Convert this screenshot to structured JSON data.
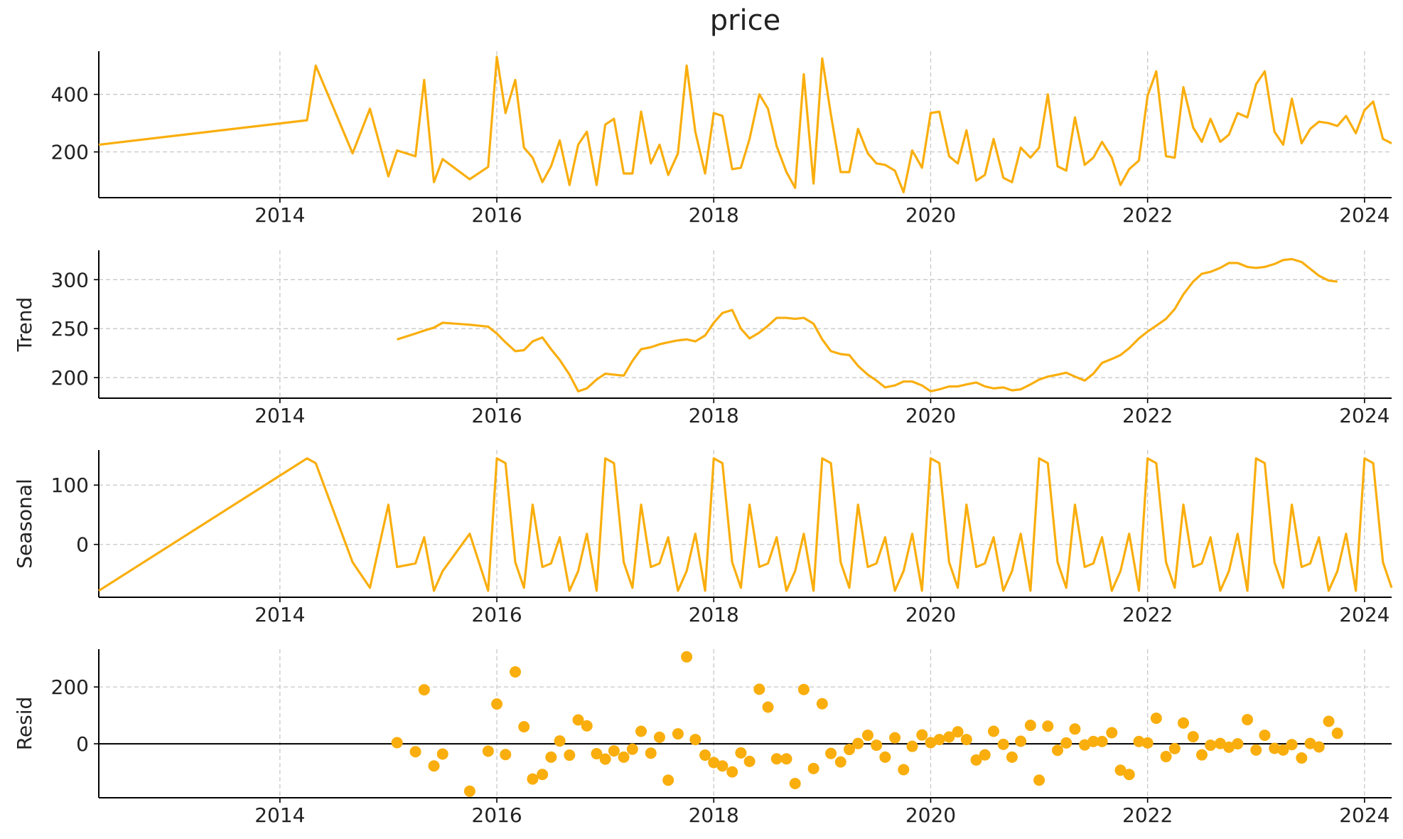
{
  "chart_data": [
    {
      "type": "line",
      "title": "price",
      "x": [
        2012.33,
        2014.25,
        2014.33,
        2014.67,
        2014.83,
        2015,
        2015.08,
        2015.25,
        2015.33,
        2015.42,
        2015.5,
        2015.75,
        2015.92,
        2016,
        2016.08,
        2016.17,
        2016.25,
        2016.33,
        2016.42,
        2016.5,
        2016.58,
        2016.67,
        2016.75,
        2016.83,
        2016.92,
        2017,
        2017.08,
        2017.17,
        2017.25,
        2017.33,
        2017.42,
        2017.5,
        2017.58,
        2017.67,
        2017.75,
        2017.83,
        2017.92,
        2018,
        2018.08,
        2018.17,
        2018.25,
        2018.33,
        2018.42,
        2018.5,
        2018.58,
        2018.67,
        2018.75,
        2018.83,
        2018.92,
        2019,
        2019.08,
        2019.17,
        2019.25,
        2019.33,
        2019.42,
        2019.5,
        2019.58,
        2019.67,
        2019.75,
        2019.83,
        2019.92,
        2020,
        2020.08,
        2020.17,
        2020.25,
        2020.33,
        2020.42,
        2020.5,
        2020.58,
        2020.67,
        2020.75,
        2020.83,
        2020.92,
        2021,
        2021.08,
        2021.17,
        2021.25,
        2021.33,
        2021.42,
        2021.5,
        2021.58,
        2021.67,
        2021.75,
        2021.83,
        2021.92,
        2022,
        2022.08,
        2022.17,
        2022.25,
        2022.33,
        2022.42,
        2022.5,
        2022.58,
        2022.67,
        2022.75,
        2022.83,
        2022.92,
        2023,
        2023.08,
        2023.17,
        2023.25,
        2023.33,
        2023.42,
        2023.5,
        2023.58,
        2023.67,
        2023.75,
        2023.83,
        2023.92,
        2024,
        2024.08,
        2024.17,
        2024.25
      ],
      "values": [
        225,
        310,
        500,
        195,
        350,
        115,
        205,
        185,
        450,
        95,
        175,
        105,
        148,
        530,
        335,
        450,
        215,
        180,
        95,
        150,
        240,
        85,
        225,
        270,
        85,
        295,
        315,
        125,
        125,
        340,
        160,
        225,
        120,
        195,
        500,
        270,
        125,
        335,
        325,
        140,
        145,
        245,
        400,
        350,
        220,
        130,
        75,
        470,
        90,
        525,
        330,
        130,
        130,
        280,
        195,
        160,
        155,
        135,
        60,
        205,
        145,
        335,
        340,
        185,
        160,
        275,
        100,
        120,
        245,
        110,
        95,
        215,
        180,
        215,
        400,
        150,
        135,
        320,
        155,
        180,
        235,
        180,
        85,
        140,
        170,
        395,
        480,
        185,
        180,
        425,
        285,
        235,
        315,
        235,
        260,
        335,
        320,
        435,
        480,
        270,
        225,
        385,
        230,
        280,
        305,
        300,
        290,
        325,
        265,
        345,
        375,
        245,
        230
      ],
      "color": "#f9ae0d",
      "xlim": [
        2012.33,
        2024.25
      ],
      "xticks": [
        2014,
        2016,
        2018,
        2020,
        2022,
        2024
      ],
      "ylim": [
        41,
        550
      ],
      "yticks": [
        200,
        400
      ],
      "grid": true
    },
    {
      "type": "line",
      "y_label": "Trend",
      "x": [
        2012.33,
        2014.25,
        2014.33,
        2014.67,
        2014.83,
        2015,
        2015.08,
        2015.25,
        2015.33,
        2015.42,
        2015.5,
        2015.75,
        2015.92,
        2016,
        2016.08,
        2016.17,
        2016.25,
        2016.33,
        2016.42,
        2016.5,
        2016.58,
        2016.67,
        2016.75,
        2016.83,
        2016.92,
        2017,
        2017.08,
        2017.17,
        2017.25,
        2017.33,
        2017.42,
        2017.5,
        2017.58,
        2017.67,
        2017.75,
        2017.83,
        2017.92,
        2018,
        2018.08,
        2018.17,
        2018.25,
        2018.33,
        2018.42,
        2018.5,
        2018.58,
        2018.67,
        2018.75,
        2018.83,
        2018.92,
        2019,
        2019.08,
        2019.17,
        2019.25,
        2019.33,
        2019.42,
        2019.5,
        2019.58,
        2019.67,
        2019.75,
        2019.83,
        2019.92,
        2020,
        2020.08,
        2020.17,
        2020.25,
        2020.33,
        2020.42,
        2020.5,
        2020.58,
        2020.67,
        2020.75,
        2020.83,
        2020.92,
        2021,
        2021.08,
        2021.17,
        2021.25,
        2021.33,
        2021.42,
        2021.5,
        2021.58,
        2021.67,
        2021.75,
        2021.83,
        2021.92,
        2022,
        2022.08,
        2022.17,
        2022.25,
        2022.33,
        2022.42,
        2022.5,
        2022.58,
        2022.67,
        2022.75,
        2022.83,
        2022.92,
        2023,
        2023.08,
        2023.17,
        2023.25,
        2023.33,
        2023.42,
        2023.5,
        2023.58,
        2023.67,
        2023.75,
        2023.83,
        2023.92,
        2024,
        2024.08,
        2024.17,
        2024.25
      ],
      "values": [
        null,
        null,
        null,
        null,
        null,
        null,
        239,
        245,
        248,
        251,
        256,
        254,
        252,
        245,
        236,
        227,
        228,
        237,
        241,
        229,
        218,
        203,
        186,
        189,
        198,
        204,
        203,
        202,
        217,
        229,
        231,
        234,
        236,
        238,
        239,
        237,
        243,
        256,
        266,
        269,
        250,
        240,
        246,
        253,
        261,
        261,
        260,
        261,
        255,
        239,
        227,
        224,
        223,
        212,
        203,
        197,
        190,
        192,
        196,
        196,
        192,
        186,
        188,
        191,
        191,
        193,
        195,
        191,
        189,
        190,
        187,
        188,
        193,
        198,
        201,
        203,
        205,
        201,
        197,
        204,
        215,
        219,
        223,
        230,
        240,
        247,
        253,
        260,
        270,
        285,
        298,
        306,
        308,
        312,
        317,
        317,
        313,
        312,
        313,
        316,
        320,
        321,
        318,
        311,
        304,
        299,
        298,
        null,
        null,
        null,
        null,
        null,
        null
      ],
      "color": "#f9ae0d",
      "xlim": [
        2012.33,
        2024.25
      ],
      "xticks": [
        2014,
        2016,
        2018,
        2020,
        2022,
        2024
      ],
      "ylim": [
        179,
        330
      ],
      "yticks": [
        200,
        250,
        300
      ],
      "grid": true
    },
    {
      "type": "line",
      "y_label": "Seasonal",
      "x": [
        2012.33,
        2014.25,
        2014.33,
        2014.67,
        2014.83,
        2015,
        2015.08,
        2015.25,
        2015.33,
        2015.42,
        2015.5,
        2015.75,
        2015.92,
        2016,
        2016.08,
        2016.17,
        2016.25,
        2016.33,
        2016.42,
        2016.5,
        2016.58,
        2016.67,
        2016.75,
        2016.83,
        2016.92,
        2017,
        2017.08,
        2017.17,
        2017.25,
        2017.33,
        2017.42,
        2017.5,
        2017.58,
        2017.67,
        2017.75,
        2017.83,
        2017.92,
        2018,
        2018.08,
        2018.17,
        2018.25,
        2018.33,
        2018.42,
        2018.5,
        2018.58,
        2018.67,
        2018.75,
        2018.83,
        2018.92,
        2019,
        2019.08,
        2019.17,
        2019.25,
        2019.33,
        2019.42,
        2019.5,
        2019.58,
        2019.67,
        2019.75,
        2019.83,
        2019.92,
        2020,
        2020.08,
        2020.17,
        2020.25,
        2020.33,
        2020.42,
        2020.5,
        2020.58,
        2020.67,
        2020.75,
        2020.83,
        2020.92,
        2021,
        2021.08,
        2021.17,
        2021.25,
        2021.33,
        2021.42,
        2021.5,
        2021.58,
        2021.67,
        2021.75,
        2021.83,
        2021.92,
        2022,
        2022.08,
        2022.17,
        2022.25,
        2022.33,
        2022.42,
        2022.5,
        2022.58,
        2022.67,
        2022.75,
        2022.83,
        2022.92,
        2023,
        2023.08,
        2023.17,
        2023.25,
        2023.33,
        2023.42,
        2023.5,
        2023.58,
        2023.67,
        2023.75,
        2023.83,
        2023.92,
        2024,
        2024.08,
        2024.17,
        2024.25
      ],
      "values": [
        -78,
        145,
        137,
        -30,
        -73,
        67,
        -38,
        -32,
        12,
        -78,
        -45,
        18,
        -78,
        145,
        137,
        -30,
        -73,
        67,
        -38,
        -32,
        12,
        -78,
        -45,
        18,
        -78,
        145,
        137,
        -30,
        -73,
        67,
        -38,
        -32,
        12,
        -78,
        -45,
        18,
        -78,
        145,
        137,
        -30,
        -73,
        67,
        -38,
        -32,
        12,
        -78,
        -45,
        18,
        -78,
        145,
        137,
        -30,
        -73,
        67,
        -38,
        -32,
        12,
        -78,
        -45,
        18,
        -78,
        145,
        137,
        -30,
        -73,
        67,
        -38,
        -32,
        12,
        -78,
        -45,
        18,
        -78,
        145,
        137,
        -30,
        -73,
        67,
        -38,
        -32,
        12,
        -78,
        -45,
        18,
        -78,
        145,
        137,
        -30,
        -73,
        67,
        -38,
        -32,
        12,
        -78,
        -45,
        18,
        -78,
        145,
        137,
        -30,
        -73,
        67,
        -38,
        -32,
        12,
        -78,
        -45,
        18,
        -78,
        145,
        137,
        -30,
        -73
      ],
      "color": "#f9ae0d",
      "xlim": [
        2012.33,
        2024.25
      ],
      "xticks": [
        2014,
        2016,
        2018,
        2020,
        2022,
        2024
      ],
      "ylim": [
        -89,
        159
      ],
      "yticks": [
        0,
        100
      ],
      "grid": true
    },
    {
      "type": "scatter",
      "y_label": "Resid",
      "x": [
        2012.33,
        2014.25,
        2014.33,
        2014.67,
        2014.83,
        2015,
        2015.08,
        2015.25,
        2015.33,
        2015.42,
        2015.5,
        2015.75,
        2015.92,
        2016,
        2016.08,
        2016.17,
        2016.25,
        2016.33,
        2016.42,
        2016.5,
        2016.58,
        2016.67,
        2016.75,
        2016.83,
        2016.92,
        2017,
        2017.08,
        2017.17,
        2017.25,
        2017.33,
        2017.42,
        2017.5,
        2017.58,
        2017.67,
        2017.75,
        2017.83,
        2017.92,
        2018,
        2018.08,
        2018.17,
        2018.25,
        2018.33,
        2018.42,
        2018.5,
        2018.58,
        2018.67,
        2018.75,
        2018.83,
        2018.92,
        2019,
        2019.08,
        2019.17,
        2019.25,
        2019.33,
        2019.42,
        2019.5,
        2019.58,
        2019.67,
        2019.75,
        2019.83,
        2019.92,
        2020,
        2020.08,
        2020.17,
        2020.25,
        2020.33,
        2020.42,
        2020.5,
        2020.58,
        2020.67,
        2020.75,
        2020.83,
        2020.92,
        2021,
        2021.08,
        2021.17,
        2021.25,
        2021.33,
        2021.42,
        2021.5,
        2021.58,
        2021.67,
        2021.75,
        2021.83,
        2021.92,
        2022,
        2022.08,
        2022.17,
        2022.25,
        2022.33,
        2022.42,
        2022.5,
        2022.58,
        2022.67,
        2022.75,
        2022.83,
        2022.92,
        2023,
        2023.08,
        2023.17,
        2023.25,
        2023.33,
        2023.42,
        2023.5,
        2023.58,
        2023.67,
        2023.75,
        2023.83,
        2023.92,
        2024,
        2024.08,
        2024.17,
        2024.25
      ],
      "values": [
        null,
        null,
        null,
        null,
        null,
        null,
        4,
        -28,
        190,
        -78,
        -36,
        -167,
        -26,
        140,
        -38,
        253,
        60,
        -124,
        -108,
        -47,
        10,
        -40,
        84,
        63,
        -35,
        -54,
        -25,
        -47,
        -19,
        44,
        -33,
        23,
        -128,
        35,
        306,
        15,
        -40,
        -66,
        -78,
        -99,
        -32,
        -62,
        192,
        129,
        -53,
        -53,
        -140,
        191,
        -87,
        141,
        -34,
        -64,
        -20,
        1,
        30,
        -5,
        -47,
        21,
        -91,
        -9,
        31,
        4,
        15,
        24,
        42,
        15,
        -57,
        -39,
        44,
        -2,
        -47,
        9,
        65,
        -128,
        62,
        -23,
        3,
        52,
        -4,
        8,
        8,
        39,
        -93,
        -108,
        8,
        3,
        90,
        -45,
        -17,
        73,
        25,
        -39,
        -5,
        1,
        -12,
        0,
        85,
        -22,
        30,
        -16,
        -22,
        -3,
        -50,
        1,
        -11,
        79,
        37,
        null,
        null,
        null,
        null,
        null,
        null
      ],
      "color": "#f9ae0d",
      "xlim": [
        2012.33,
        2024.25
      ],
      "xticks": [
        2014,
        2016,
        2018,
        2020,
        2022,
        2024
      ],
      "ylim": [
        -190,
        333
      ],
      "yticks": [
        0,
        200
      ],
      "grid": true,
      "zero_line": true
    }
  ]
}
